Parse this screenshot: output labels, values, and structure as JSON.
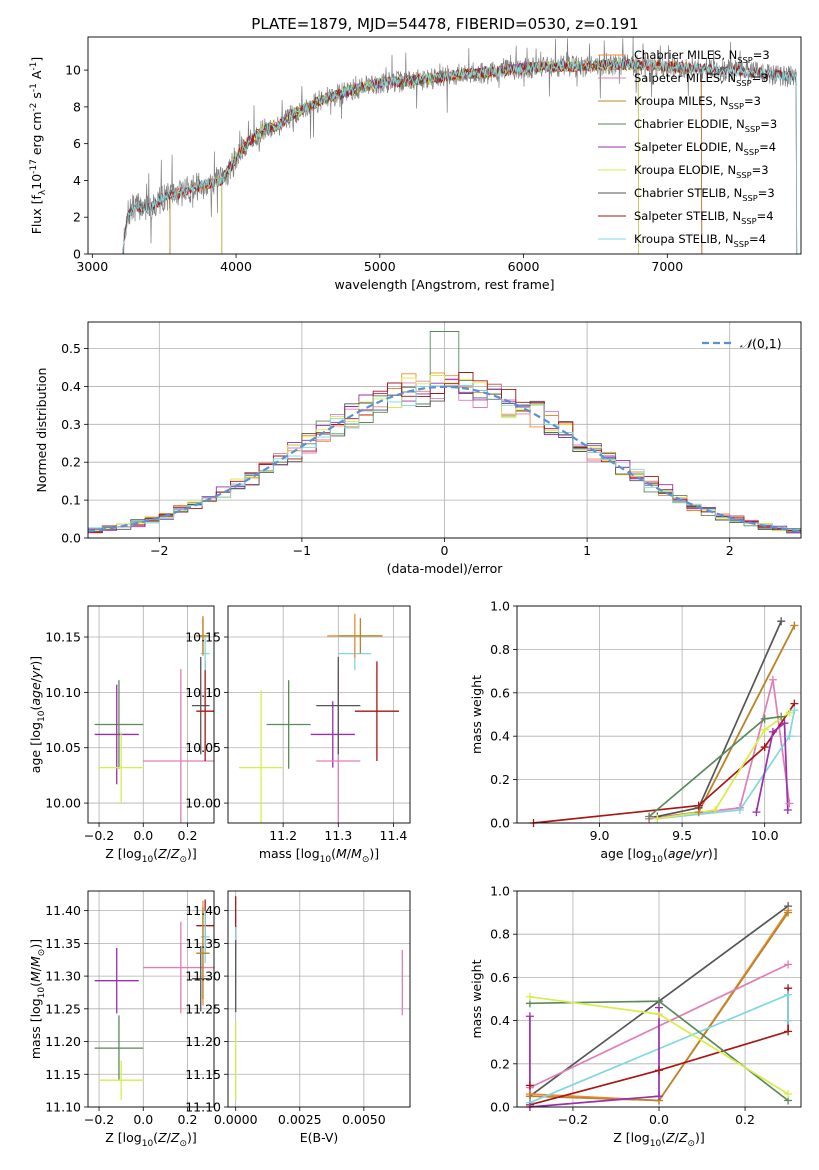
{
  "figure_title": "PLATE=1879, MJD=54478, FIBERID=0530, z=0.191",
  "colors": {
    "chabrier_miles": "#f08a3a",
    "salpeter_miles": "#e07eb8",
    "kroupa_miles": "#b8862a",
    "chabrier_elodie": "#5a8a5a",
    "salpeter_elodie": "#9a2fb0",
    "kroupa_elodie": "#d8ec4a",
    "chabrier_stelib": "#555555",
    "salpeter_stelib": "#aa1515",
    "kroupa_stelib": "#7fd8e0",
    "normal": "#5b8fd6",
    "grid": "#b0b0b0"
  },
  "chart_data": [
    {
      "id": "spectrum",
      "type": "line",
      "title": "PLATE=1879, MJD=54478, FIBERID=0530, z=0.191",
      "xlabel": "wavelength [Angstrom, rest frame]",
      "ylabel": "Flux [f$_\\lambda$10$^{-17}$ erg cm$^{-2}$ s$^{-1}$ A$^{-1}$]",
      "xlim": [
        2970,
        7930
      ],
      "ylim": [
        0,
        11.8
      ],
      "xticks": [
        3000,
        4000,
        5000,
        6000,
        7000
      ],
      "yticks": [
        0,
        2,
        4,
        6,
        8,
        10
      ],
      "grid": false,
      "legend_position": "top-right",
      "data_range": [
        3210,
        7900
      ],
      "continuum": {
        "x": [
          3210,
          3250,
          3300,
          3400,
          3500,
          3600,
          3700,
          3800,
          3900,
          4000,
          4100,
          4200,
          4300,
          4400,
          4500,
          4600,
          4800,
          5000,
          5200,
          5400,
          5600,
          5800,
          6000,
          6200,
          6400,
          6600,
          6800,
          7000,
          7200,
          7400,
          7600,
          7900
        ],
        "y": [
          0.0,
          2.2,
          2.6,
          2.5,
          3.1,
          3.3,
          3.6,
          3.8,
          4.0,
          5.2,
          6.2,
          6.8,
          7.0,
          7.6,
          8.0,
          8.4,
          8.9,
          9.3,
          9.4,
          9.6,
          9.8,
          9.9,
          10.1,
          10.2,
          10.2,
          10.3,
          10.3,
          10.2,
          10.1,
          10.0,
          9.9,
          9.6
        ]
      },
      "series": [
        {
          "name": "Chabrier MILES, N$_{SSP}$=3",
          "key": "chabrier_miles",
          "range": [
            3540,
            7240
          ]
        },
        {
          "name": "Salpeter MILES, N$_{SSP}$=3",
          "key": "salpeter_miles",
          "range": [
            3540,
            7240
          ]
        },
        {
          "name": "Kroupa MILES, N$_{SSP}$=3",
          "key": "kroupa_miles",
          "range": [
            3540,
            7240
          ]
        },
        {
          "name": "Chabrier ELODIE, N$_{SSP}$=3",
          "key": "chabrier_elodie",
          "range": [
            3900,
            6800
          ]
        },
        {
          "name": "Salpeter ELODIE, N$_{SSP}$=4",
          "key": "salpeter_elodie",
          "range": [
            3900,
            6800
          ]
        },
        {
          "name": "Kroupa ELODIE, N$_{SSP}$=3",
          "key": "kroupa_elodie",
          "range": [
            3900,
            6800
          ]
        },
        {
          "name": "Chabrier STELIB, N$_{SSP}$=3",
          "key": "chabrier_stelib",
          "range": [
            3210,
            7900
          ]
        },
        {
          "name": "Salpeter STELIB, N$_{SSP}$=4",
          "key": "salpeter_stelib",
          "range": [
            3210,
            7900
          ]
        },
        {
          "name": "Kroupa STELIB, N$_{SSP}$=4",
          "key": "kroupa_stelib",
          "range": [
            3210,
            7900
          ]
        }
      ]
    },
    {
      "id": "residuals",
      "type": "line",
      "xlabel": "(data-model)/error",
      "ylabel": "Normed distribution",
      "xlim": [
        -2.5,
        2.5
      ],
      "ylim": [
        0,
        0.57
      ],
      "xticks": [
        -2,
        -1,
        0,
        1,
        2
      ],
      "yticks": [
        0.0,
        0.1,
        0.2,
        0.3,
        0.4,
        0.5
      ],
      "grid": true,
      "legend_position": "top-right",
      "legend": "$\\mathcal{N}(0,1)$",
      "bin_width": 0.1,
      "series": [
        {
          "key": "normal"
        },
        {
          "key": "chabrier_miles"
        },
        {
          "key": "salpeter_miles"
        },
        {
          "key": "chabrier_elodie"
        },
        {
          "key": "salpeter_elodie"
        },
        {
          "key": "kroupa_elodie"
        },
        {
          "key": "chabrier_stelib"
        },
        {
          "key": "salpeter_stelib"
        },
        {
          "key": "kroupa_stelib"
        }
      ]
    },
    {
      "id": "age_vs_Z",
      "type": "scatter",
      "xlabel": "Z [log$_{10}$($Z/Z_\\odot$)]",
      "ylabel": "age  [log$_{10}$($age/yr$)]",
      "xlim": [
        -0.25,
        0.32
      ],
      "ylim": [
        9.982,
        10.178
      ],
      "xticks": [
        -0.2,
        0.0,
        0.2
      ],
      "yticks": [
        10.0,
        10.05,
        10.1,
        10.15
      ],
      "grid": true,
      "points": [
        {
          "key": "chabrier_elodie",
          "x": -0.11,
          "xerr": 0.11,
          "y": 10.071,
          "yerr": 0.04
        },
        {
          "key": "salpeter_elodie",
          "x": -0.12,
          "xerr": 0.1,
          "y": 10.062,
          "yerr": 0.045
        },
        {
          "key": "kroupa_elodie",
          "x": -0.1,
          "xerr": 0.1,
          "y": 10.032,
          "yerr": 0.032
        },
        {
          "key": "salpeter_miles",
          "x": 0.17,
          "xerr": 0.17,
          "y": 10.038,
          "yerr": 0.083
        },
        {
          "key": "chabrier_stelib",
          "x": 0.26,
          "xerr": 0.04,
          "y": 10.088,
          "yerr": 0.044
        },
        {
          "key": "salpeter_stelib",
          "x": 0.28,
          "xerr": 0.04,
          "y": 10.083,
          "yerr": 0.045
        },
        {
          "key": "kroupa_stelib",
          "x": 0.28,
          "xerr": 0.02,
          "y": 10.135,
          "yerr": 0.015
        },
        {
          "key": "chabrier_miles",
          "x": 0.27,
          "xerr": 0.03,
          "y": 10.151,
          "yerr": 0.018
        },
        {
          "key": "kroupa_miles",
          "x": 0.27,
          "xerr": 0.03,
          "y": 10.151,
          "yerr": 0.016
        }
      ]
    },
    {
      "id": "age_vs_mass",
      "type": "scatter",
      "xlabel": "mass [log$_{10}$($M/M_\\odot$)]",
      "ylabel": "",
      "xlim": [
        11.1,
        11.43
      ],
      "ylim": [
        9.982,
        10.178
      ],
      "xticks": [
        11.2,
        11.3,
        11.4
      ],
      "yticks": [
        10.0,
        10.05,
        10.1,
        10.15
      ],
      "grid": true,
      "points": [
        {
          "key": "kroupa_elodie",
          "x": 11.16,
          "xerr": 0.04,
          "y": 10.032,
          "yerr": 0.07
        },
        {
          "key": "chabrier_elodie",
          "x": 11.21,
          "xerr": 0.04,
          "y": 10.071,
          "yerr": 0.04
        },
        {
          "key": "salpeter_elodie",
          "x": 11.29,
          "xerr": 0.04,
          "y": 10.062,
          "yerr": 0.03
        },
        {
          "key": "salpeter_miles",
          "x": 11.3,
          "xerr": 0.04,
          "y": 10.038,
          "yerr": 0.083
        },
        {
          "key": "chabrier_stelib",
          "x": 11.3,
          "xerr": 0.04,
          "y": 10.088,
          "yerr": 0.044
        },
        {
          "key": "salpeter_stelib",
          "x": 11.37,
          "xerr": 0.04,
          "y": 10.083,
          "yerr": 0.045
        },
        {
          "key": "kroupa_stelib",
          "x": 11.33,
          "xerr": 0.03,
          "y": 10.135,
          "yerr": 0.015
        },
        {
          "key": "chabrier_miles",
          "x": 11.33,
          "xerr": 0.05,
          "y": 10.151,
          "yerr": 0.02
        },
        {
          "key": "kroupa_miles",
          "x": 11.34,
          "xerr": 0.04,
          "y": 10.151,
          "yerr": 0.016
        }
      ]
    },
    {
      "id": "weight_vs_age",
      "type": "line",
      "xlabel": "age  [log$_{10}$($age/yr$)]",
      "ylabel": "mass weight",
      "xlim": [
        8.5,
        10.22
      ],
      "ylim": [
        0,
        1.0
      ],
      "xticks": [
        9.0,
        9.5,
        10.0
      ],
      "yticks": [
        0.0,
        0.2,
        0.4,
        0.6,
        0.8,
        1.0
      ],
      "grid": true,
      "series": [
        {
          "key": "chabrier_stelib",
          "x": [
            9.35,
            9.6,
            10.1
          ],
          "y": [
            0.03,
            0.07,
            0.93
          ]
        },
        {
          "key": "chabrier_miles",
          "x": [
            9.3,
            9.6,
            10.18
          ],
          "y": [
            0.02,
            0.05,
            0.91
          ]
        },
        {
          "key": "kroupa_miles",
          "x": [
            9.3,
            9.6,
            10.18
          ],
          "y": [
            0.02,
            0.05,
            0.91
          ]
        },
        {
          "key": "salpeter_miles",
          "x": [
            9.3,
            9.85,
            10.05,
            10.15
          ],
          "y": [
            0.02,
            0.07,
            0.66,
            0.09
          ]
        },
        {
          "key": "salpeter_stelib",
          "x": [
            8.6,
            9.6,
            10.0,
            10.18
          ],
          "y": [
            0.0,
            0.08,
            0.35,
            0.55
          ]
        },
        {
          "key": "kroupa_stelib",
          "x": [
            9.35,
            9.85,
            10.15,
            10.18
          ],
          "y": [
            0.02,
            0.06,
            0.4,
            0.52
          ]
        },
        {
          "key": "chabrier_elodie",
          "x": [
            9.3,
            10.0,
            10.1
          ],
          "y": [
            0.03,
            0.48,
            0.49
          ]
        },
        {
          "key": "kroupa_elodie",
          "x": [
            9.35,
            9.7,
            10.0,
            10.15
          ],
          "y": [
            0.02,
            0.06,
            0.43,
            0.51
          ]
        },
        {
          "key": "salpeter_elodie",
          "x": [
            9.95,
            10.05,
            10.12,
            10.14
          ],
          "y": [
            0.05,
            0.42,
            0.46,
            0.06
          ]
        }
      ]
    },
    {
      "id": "mass_vs_Z",
      "type": "scatter",
      "xlabel": "Z [log$_{10}$($Z/Z_\\odot$)]",
      "ylabel": "mass [log$_{10}$($M/M_\\odot$)]",
      "xlim": [
        -0.25,
        0.32
      ],
      "ylim": [
        11.1,
        11.43
      ],
      "xticks": [
        -0.2,
        0.0,
        0.2
      ],
      "yticks": [
        11.1,
        11.15,
        11.2,
        11.25,
        11.3,
        11.35,
        11.4
      ],
      "grid": true,
      "points": [
        {
          "key": "chabrier_elodie",
          "x": -0.11,
          "xerr": 0.11,
          "y": 11.19,
          "yerr": 0.05
        },
        {
          "key": "salpeter_elodie",
          "x": -0.12,
          "xerr": 0.1,
          "y": 11.293,
          "yerr": 0.05
        },
        {
          "key": "kroupa_elodie",
          "x": -0.1,
          "xerr": 0.1,
          "y": 11.141,
          "yerr": 0.03
        },
        {
          "key": "salpeter_miles",
          "x": 0.17,
          "xerr": 0.17,
          "y": 11.313,
          "yerr": 0.07
        },
        {
          "key": "chabrier_stelib",
          "x": 0.26,
          "xerr": 0.04,
          "y": 11.296,
          "yerr": 0.05
        },
        {
          "key": "salpeter_stelib",
          "x": 0.28,
          "xerr": 0.04,
          "y": 11.377,
          "yerr": 0.04
        },
        {
          "key": "kroupa_stelib",
          "x": 0.28,
          "xerr": 0.02,
          "y": 11.36,
          "yerr": 0.04
        },
        {
          "key": "chabrier_miles",
          "x": 0.27,
          "xerr": 0.03,
          "y": 11.335,
          "yerr": 0.08
        },
        {
          "key": "kroupa_miles",
          "x": 0.27,
          "xerr": 0.03,
          "y": 11.335,
          "yerr": 0.07
        }
      ]
    },
    {
      "id": "mass_vs_ebv",
      "type": "scatter",
      "xlabel": "E(B-V)",
      "ylabel": "",
      "xlim": [
        -0.0003,
        0.0068
      ],
      "ylim": [
        11.1,
        11.43
      ],
      "xticks": [
        0.0,
        0.0025,
        0.005
      ],
      "xtick_labels": [
        "0.0000",
        "0.0025",
        "0.0050"
      ],
      "yticks": [
        11.1,
        11.15,
        11.2,
        11.25,
        11.3,
        11.35,
        11.4
      ],
      "grid": true,
      "points": [
        {
          "key": "salpeter_stelib",
          "x": 0.0,
          "xerr": 0.0,
          "y": 11.377,
          "yerr": 0.045
        },
        {
          "key": "kroupa_stelib",
          "x": 0.0,
          "xerr": 0.0,
          "y": 11.33,
          "yerr": 0.045
        },
        {
          "key": "chabrier_stelib",
          "x": 0.0,
          "xerr": 0.0,
          "y": 11.3,
          "yerr": 0.055
        },
        {
          "key": "kroupa_elodie",
          "x": 0.0,
          "xerr": 0.0,
          "y": 11.17,
          "yerr": 0.06
        },
        {
          "key": "salpeter_miles",
          "x": 0.0065,
          "xerr": 0.0,
          "y": 11.29,
          "yerr": 0.05
        }
      ]
    },
    {
      "id": "weight_vs_Z",
      "type": "line",
      "xlabel": "Z [log$_{10}$($Z/Z_\\odot$)]",
      "ylabel": "mass weight",
      "xlim": [
        -0.33,
        0.33
      ],
      "ylim": [
        0,
        1.0
      ],
      "xticks": [
        -0.2,
        0.0,
        0.2
      ],
      "yticks": [
        0.0,
        0.2,
        0.4,
        0.6,
        0.8,
        1.0
      ],
      "grid": true,
      "series": [
        {
          "key": "chabrier_stelib",
          "x": [
            -0.3,
            0.0,
            0.3
          ],
          "y": [
            0.05,
            0.49,
            0.93
          ]
        },
        {
          "key": "chabrier_miles",
          "x": [
            -0.3,
            0.0,
            0.3
          ],
          "y": [
            0.06,
            0.03,
            0.91
          ]
        },
        {
          "key": "kroupa_miles",
          "x": [
            -0.3,
            0.0,
            0.3
          ],
          "y": [
            0.05,
            0.03,
            0.9
          ]
        },
        {
          "key": "salpeter_miles",
          "x": [
            -0.3,
            0.3
          ],
          "y": [
            0.09,
            0.66
          ]
        },
        {
          "key": "salpeter_stelib",
          "x": [
            -0.3,
            -0.3,
            0.0,
            0.3,
            0.3
          ],
          "y": [
            0.1,
            0.01,
            0.17,
            0.35,
            0.55
          ]
        },
        {
          "key": "kroupa_stelib",
          "x": [
            -0.3,
            0.3,
            0.3
          ],
          "y": [
            0.02,
            0.52,
            0.4
          ]
        },
        {
          "key": "chabrier_elodie",
          "x": [
            -0.3,
            0.0,
            0.3
          ],
          "y": [
            0.48,
            0.49,
            0.03
          ]
        },
        {
          "key": "kroupa_elodie",
          "x": [
            -0.3,
            0.0,
            0.3
          ],
          "y": [
            0.51,
            0.43,
            0.06
          ]
        },
        {
          "key": "salpeter_elodie",
          "x": [
            -0.3,
            -0.3,
            0.0,
            0.0
          ],
          "y": [
            0.42,
            0.0,
            0.05,
            0.46
          ]
        }
      ]
    }
  ]
}
